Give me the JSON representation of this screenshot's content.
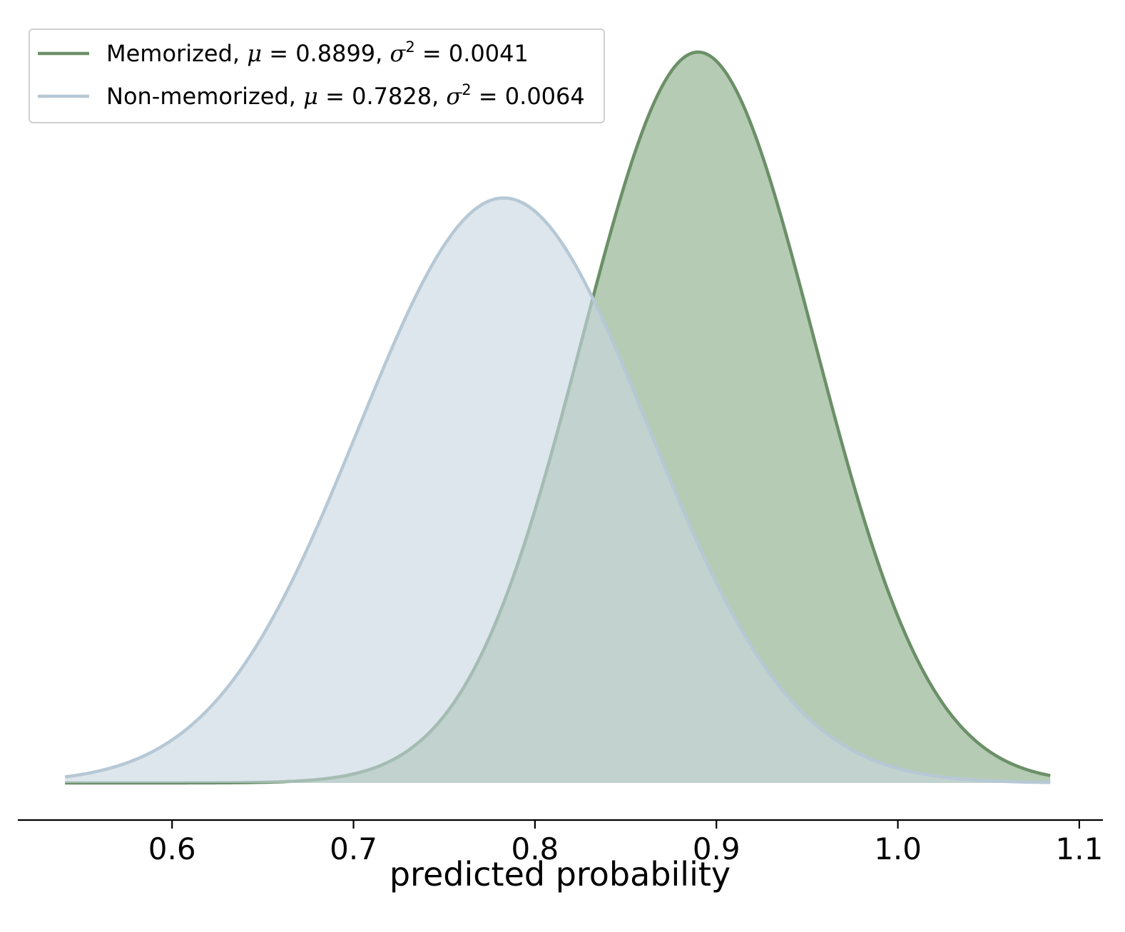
{
  "chart_data": {
    "type": "area",
    "xlabel": "predicted probability",
    "ylabel": "",
    "title": "",
    "xlim": [
      0.515,
      1.113
    ],
    "x_ticks": [
      "0.6",
      "0.7",
      "0.8",
      "0.9",
      "1.0",
      "1.1"
    ],
    "x_tick_values": [
      0.6,
      0.7,
      0.8,
      0.9,
      1.0,
      1.1
    ],
    "x_range": [
      0.541,
      1.084
    ],
    "y_axis_visible": false,
    "grid": false,
    "legend_position": "top-left",
    "series": [
      {
        "name": "Memorized",
        "mu": 0.8899,
        "sigma2": 0.0041,
        "mu_text": "0.8899",
        "sigma2_text": "0.0041",
        "line_color": "#6b9068",
        "fill_color": "#b5cbb3"
      },
      {
        "name": "Non-memorized",
        "mu": 0.7828,
        "sigma2": 0.0064,
        "mu_text": "0.7828",
        "sigma2_text": "0.0064",
        "line_color": "#b6c8d5",
        "fill_color": "#c8d6e1"
      }
    ]
  }
}
